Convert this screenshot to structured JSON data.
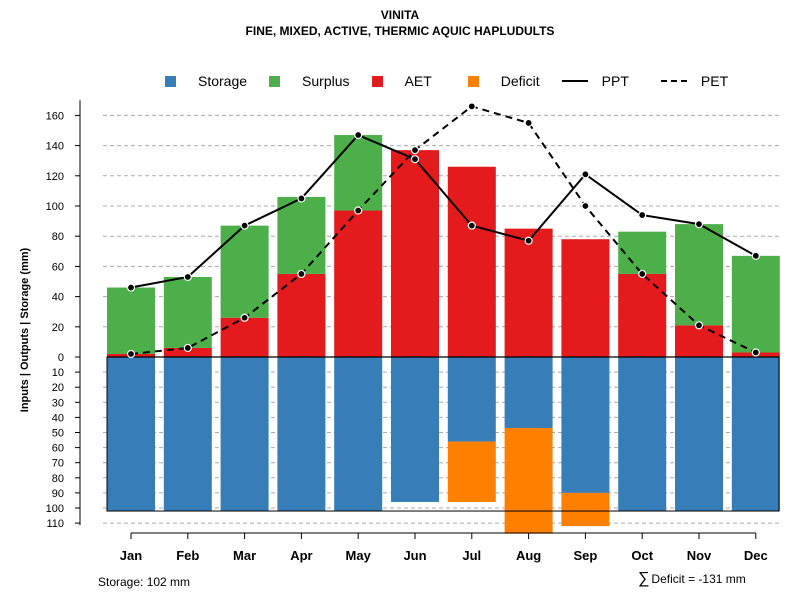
{
  "chart_data": {
    "type": "bar",
    "title": "VINITA",
    "subtitle": "FINE, MIXED, ACTIVE, THERMIC AQUIC HAPLUDULTS",
    "ylabel": "Inputs | Outputs | Storage    (mm)",
    "categories": [
      "Jan",
      "Feb",
      "Mar",
      "Apr",
      "May",
      "Jun",
      "Jul",
      "Aug",
      "Sep",
      "Oct",
      "Nov",
      "Dec"
    ],
    "yticks_top": [
      0,
      20,
      40,
      60,
      80,
      100,
      120,
      140,
      160
    ],
    "yticks_bottom": [
      10,
      20,
      30,
      40,
      50,
      60,
      70,
      80,
      90,
      100,
      110
    ],
    "ylim_top": [
      0,
      170
    ],
    "ylim_bottom": [
      0,
      110
    ],
    "legend": [
      {
        "name": "Storage",
        "kind": "box",
        "color": "#377EB8"
      },
      {
        "name": "Surplus",
        "kind": "box",
        "color": "#4DAF4A"
      },
      {
        "name": "AET",
        "kind": "box",
        "color": "#E41A1C"
      },
      {
        "name": "Deficit",
        "kind": "box",
        "color": "#FF7F00"
      },
      {
        "name": "PPT",
        "kind": "line",
        "style": "solid"
      },
      {
        "name": "PET",
        "kind": "line",
        "style": "dashed"
      }
    ],
    "series": [
      {
        "name": "AET",
        "values": [
          2,
          6,
          26,
          55,
          97,
          137,
          126,
          85,
          78,
          55,
          21,
          3
        ]
      },
      {
        "name": "Surplus",
        "values": [
          44,
          47,
          61,
          51,
          50,
          0,
          0,
          0,
          0,
          28,
          67,
          64
        ]
      },
      {
        "name": "Storage",
        "values": [
          102,
          102,
          102,
          102,
          102,
          96,
          56,
          47,
          90,
          102,
          102,
          102
        ]
      },
      {
        "name": "Deficit",
        "values": [
          0,
          0,
          0,
          0,
          0,
          0,
          40,
          70,
          22,
          0,
          0,
          0
        ]
      },
      {
        "name": "PPT",
        "values": [
          46,
          53,
          87,
          105,
          147,
          131,
          87,
          77,
          121,
          94,
          88,
          67
        ]
      },
      {
        "name": "PET",
        "values": [
          2,
          6,
          26,
          55,
          97,
          137,
          166,
          155,
          100,
          55,
          21,
          3
        ]
      }
    ],
    "storage_capacity": 102,
    "notes": {
      "storage": "Storage: 102 mm",
      "deficit_symbol": "∑",
      "deficit": "Deficit = -131 mm"
    }
  }
}
